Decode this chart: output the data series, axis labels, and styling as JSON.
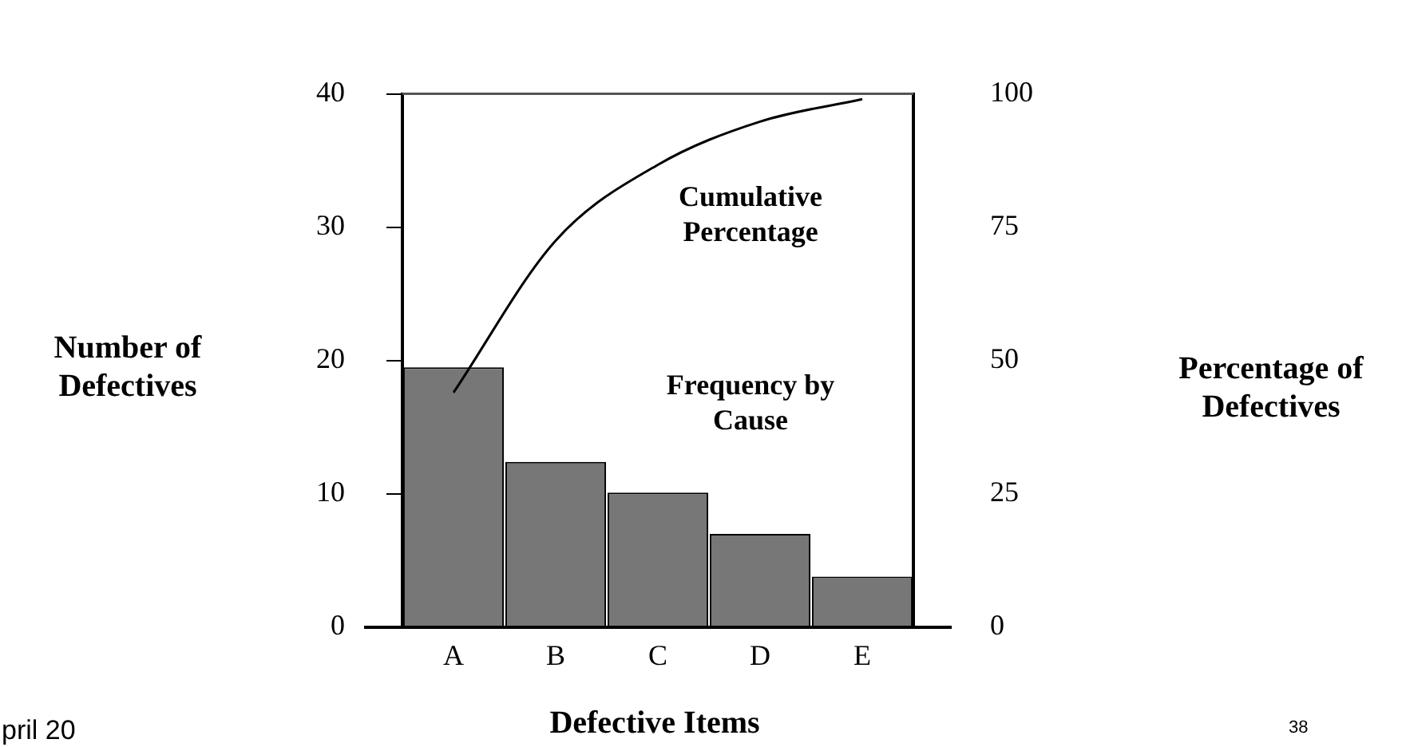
{
  "chart_data": {
    "type": "bar",
    "xlabel": "Defective Items",
    "ylabel": "Number of Defectives",
    "y2label": "Percentage of Defectives",
    "categories": [
      "A",
      "B",
      "C",
      "D",
      "E"
    ],
    "series": [
      {
        "color": "#777777",
        "values": [
          19.5,
          12.4,
          10.1,
          7.0,
          3.8
        ]
      },
      {
        "type": "line",
        "axis": "y2",
        "color": "#000000",
        "values": [
          44,
          72.5,
          86.7,
          94.8,
          99
        ]
      }
    ],
    "ylim": [
      0,
      40
    ],
    "yticks": [
      0,
      10,
      20,
      30,
      40
    ],
    "y2lim": [
      0,
      100
    ],
    "y2ticks": [
      0,
      25,
      50,
      75,
      100
    ],
    "grid": false,
    "legend": false,
    "marker": "none",
    "annotations": [
      "Cumulative Percentage",
      "Frequency by Cause",
      "pril 20",
      "38"
    ]
  }
}
